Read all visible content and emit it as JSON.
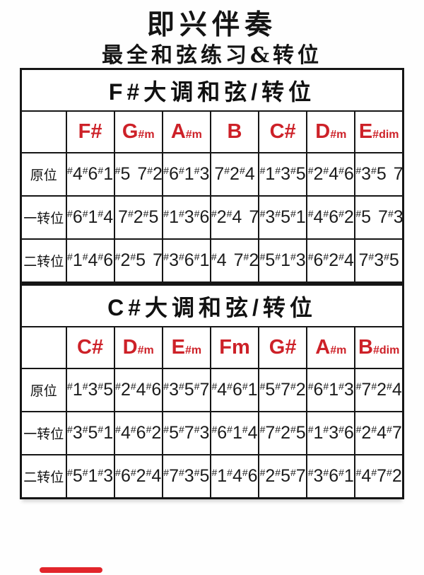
{
  "header": {
    "title": "即兴伴奏",
    "subtitle": "最全和弦练习&转位"
  },
  "colors": {
    "chord_red": "#cd2128",
    "border_black": "#161616",
    "progress_red": "#e2252b"
  },
  "tables": [
    {
      "title": "F#大调和弦/转位",
      "chords": [
        {
          "main": "F#",
          "sub": ""
        },
        {
          "main": "G",
          "sub": "#m"
        },
        {
          "main": "A",
          "sub": "#m"
        },
        {
          "main": "B",
          "sub": ""
        },
        {
          "main": "C#",
          "sub": ""
        },
        {
          "main": "D",
          "sub": "#m"
        },
        {
          "main": "E",
          "sub": "#dim"
        }
      ],
      "rows": [
        {
          "label": "原位",
          "cells": [
            "#4#6#1",
            "#5 7#2",
            "#6#1#3",
            "7#2#4",
            "#1#3#5",
            "#2#4#6",
            "#3#5 7"
          ]
        },
        {
          "label": "一转位",
          "cells": [
            "#6#1#4",
            "7#2#5",
            "#1#3#6",
            "#2#4 7",
            "#3#5#1",
            "#4#6#2",
            "#5 7#3"
          ]
        },
        {
          "label": "二转位",
          "cells": [
            "#1#4#6",
            "#2#5 7",
            "#3#6#1",
            "#4 7#2",
            "#5#1#3",
            "#6#2#4",
            "7#3#5"
          ]
        }
      ]
    },
    {
      "title": "C#大调和弦/转位",
      "chords": [
        {
          "main": "C#",
          "sub": ""
        },
        {
          "main": "D",
          "sub": "#m"
        },
        {
          "main": "E",
          "sub": "#m"
        },
        {
          "main": "Fm",
          "sub": ""
        },
        {
          "main": "G#",
          "sub": ""
        },
        {
          "main": "A",
          "sub": "#m"
        },
        {
          "main": "B",
          "sub": "#dim"
        }
      ],
      "rows": [
        {
          "label": "原位",
          "cells": [
            "#1#3#5",
            "#2#4#6",
            "#3#5#7",
            "#4#6#1",
            "#5#7#2",
            "#6#1#3",
            "#7#2#4"
          ]
        },
        {
          "label": "一转位",
          "cells": [
            "#3#5#1",
            "#4#6#2",
            "#5#7#3",
            "#6#1#4",
            "#7#2#5",
            "#1#3#6",
            "#2#4#7"
          ]
        },
        {
          "label": "二转位",
          "cells": [
            "#5#1#3",
            "#6#2#4",
            "#7#3#5",
            "#1#4#6",
            "#2#5#7",
            "#3#6#1",
            "#4#7#2"
          ]
        }
      ]
    }
  ]
}
